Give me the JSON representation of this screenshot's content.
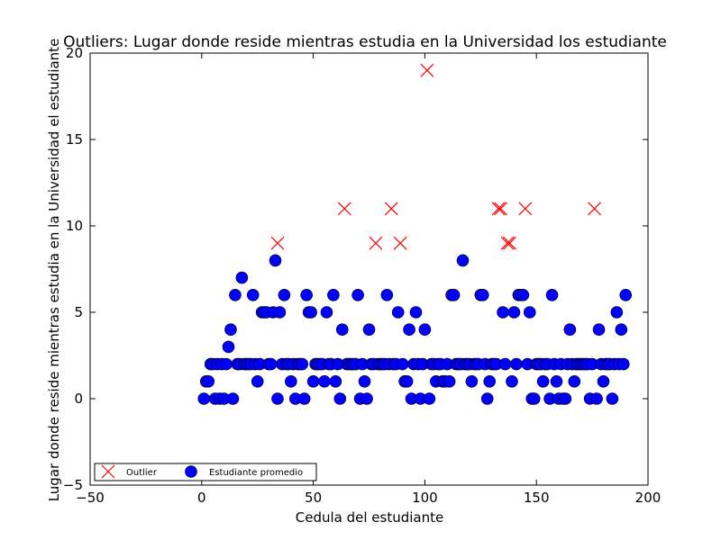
{
  "chart_data": {
    "type": "scatter",
    "title": "Outliers: Lugar donde reside mientras estudia en la Universidad los estudiante",
    "xlabel": "Cedula del estudiante",
    "ylabel": "Lugar donde reside mientras estudia en la Universidad el estudiante",
    "xlim": [
      -50,
      200
    ],
    "ylim": [
      -5,
      20
    ],
    "xticks": [
      -50,
      0,
      50,
      100,
      150,
      200
    ],
    "yticks": [
      -5,
      0,
      5,
      10,
      15,
      20
    ],
    "grid": false,
    "legend": {
      "placement": "lower-left",
      "entries": [
        "Outlier",
        "Estudiante promedio"
      ]
    },
    "series": [
      {
        "name": "Outlier",
        "marker": "x",
        "color": "#ff0000",
        "points": [
          [
            34,
            9
          ],
          [
            64,
            11
          ],
          [
            78,
            9
          ],
          [
            85,
            11
          ],
          [
            89,
            9
          ],
          [
            101,
            19
          ],
          [
            133,
            11
          ],
          [
            134,
            11
          ],
          [
            137,
            9
          ],
          [
            138,
            9
          ],
          [
            145,
            11
          ],
          [
            176,
            11
          ]
        ]
      },
      {
        "name": "Estudiante promedio",
        "marker": "circle",
        "color": "#0000ff",
        "points": [
          [
            1,
            0
          ],
          [
            2,
            1
          ],
          [
            3,
            1
          ],
          [
            4,
            2
          ],
          [
            5,
            2
          ],
          [
            6,
            0
          ],
          [
            7,
            2
          ],
          [
            8,
            0
          ],
          [
            9,
            2
          ],
          [
            10,
            0
          ],
          [
            11,
            2
          ],
          [
            12,
            3
          ],
          [
            13,
            4
          ],
          [
            14,
            0
          ],
          [
            15,
            6
          ],
          [
            16,
            2
          ],
          [
            17,
            2
          ],
          [
            18,
            7
          ],
          [
            19,
            2
          ],
          [
            20,
            2
          ],
          [
            21,
            2
          ],
          [
            22,
            2
          ],
          [
            23,
            6
          ],
          [
            24,
            2
          ],
          [
            25,
            1
          ],
          [
            26,
            2
          ],
          [
            27,
            5
          ],
          [
            28,
            5
          ],
          [
            29,
            5
          ],
          [
            30,
            2
          ],
          [
            31,
            2
          ],
          [
            32,
            5
          ],
          [
            33,
            8
          ],
          [
            34,
            0
          ],
          [
            35,
            5
          ],
          [
            36,
            2
          ],
          [
            37,
            6
          ],
          [
            38,
            2
          ],
          [
            39,
            2
          ],
          [
            40,
            1
          ],
          [
            41,
            2
          ],
          [
            42,
            0
          ],
          [
            43,
            2
          ],
          [
            44,
            2
          ],
          [
            45,
            2
          ],
          [
            46,
            0
          ],
          [
            47,
            6
          ],
          [
            48,
            5
          ],
          [
            49,
            5
          ],
          [
            50,
            1
          ],
          [
            51,
            2
          ],
          [
            52,
            2
          ],
          [
            53,
            2
          ],
          [
            54,
            2
          ],
          [
            55,
            1
          ],
          [
            56,
            5
          ],
          [
            57,
            2
          ],
          [
            58,
            2
          ],
          [
            59,
            6
          ],
          [
            60,
            1
          ],
          [
            61,
            2
          ],
          [
            62,
            0
          ],
          [
            63,
            4
          ],
          [
            65,
            2
          ],
          [
            66,
            2
          ],
          [
            67,
            2
          ],
          [
            68,
            2
          ],
          [
            69,
            2
          ],
          [
            70,
            6
          ],
          [
            71,
            0
          ],
          [
            72,
            2
          ],
          [
            73,
            1
          ],
          [
            74,
            0
          ],
          [
            75,
            4
          ],
          [
            76,
            2
          ],
          [
            77,
            2
          ],
          [
            79,
            2
          ],
          [
            80,
            2
          ],
          [
            81,
            2
          ],
          [
            82,
            2
          ],
          [
            83,
            6
          ],
          [
            84,
            2
          ],
          [
            86,
            2
          ],
          [
            87,
            2
          ],
          [
            88,
            5
          ],
          [
            90,
            2
          ],
          [
            91,
            1
          ],
          [
            92,
            1
          ],
          [
            93,
            4
          ],
          [
            94,
            0
          ],
          [
            95,
            2
          ],
          [
            96,
            5
          ],
          [
            97,
            2
          ],
          [
            98,
            0
          ],
          [
            99,
            2
          ],
          [
            100,
            4
          ],
          [
            102,
            0
          ],
          [
            103,
            2
          ],
          [
            104,
            2
          ],
          [
            105,
            1
          ],
          [
            106,
            2
          ],
          [
            107,
            2
          ],
          [
            108,
            1
          ],
          [
            109,
            1
          ],
          [
            110,
            2
          ],
          [
            111,
            1
          ],
          [
            112,
            6
          ],
          [
            113,
            6
          ],
          [
            114,
            2
          ],
          [
            115,
            2
          ],
          [
            116,
            2
          ],
          [
            117,
            8
          ],
          [
            118,
            2
          ],
          [
            119,
            2
          ],
          [
            120,
            2
          ],
          [
            121,
            1
          ],
          [
            122,
            2
          ],
          [
            123,
            2
          ],
          [
            124,
            2
          ],
          [
            125,
            6
          ],
          [
            126,
            6
          ],
          [
            127,
            2
          ],
          [
            128,
            0
          ],
          [
            129,
            1
          ],
          [
            130,
            2
          ],
          [
            131,
            2
          ],
          [
            132,
            2
          ],
          [
            135,
            5
          ],
          [
            136,
            2
          ],
          [
            139,
            1
          ],
          [
            140,
            5
          ],
          [
            141,
            2
          ],
          [
            142,
            6
          ],
          [
            143,
            6
          ],
          [
            144,
            6
          ],
          [
            146,
            2
          ],
          [
            147,
            5
          ],
          [
            148,
            0
          ],
          [
            149,
            0
          ],
          [
            150,
            2
          ],
          [
            151,
            2
          ],
          [
            152,
            2
          ],
          [
            153,
            1
          ],
          [
            154,
            2
          ],
          [
            155,
            2
          ],
          [
            156,
            0
          ],
          [
            157,
            6
          ],
          [
            158,
            2
          ],
          [
            159,
            1
          ],
          [
            160,
            0
          ],
          [
            161,
            2
          ],
          [
            162,
            0
          ],
          [
            163,
            0
          ],
          [
            164,
            2
          ],
          [
            165,
            4
          ],
          [
            166,
            2
          ],
          [
            167,
            1
          ],
          [
            168,
            2
          ],
          [
            169,
            2
          ],
          [
            170,
            2
          ],
          [
            171,
            2
          ],
          [
            172,
            2
          ],
          [
            173,
            2
          ],
          [
            174,
            0
          ],
          [
            175,
            2
          ],
          [
            177,
            0
          ],
          [
            178,
            4
          ],
          [
            179,
            2
          ],
          [
            180,
            1
          ],
          [
            181,
            2
          ],
          [
            182,
            2
          ],
          [
            183,
            2
          ],
          [
            184,
            0
          ],
          [
            185,
            2
          ],
          [
            186,
            5
          ],
          [
            187,
            2
          ],
          [
            188,
            4
          ],
          [
            189,
            2
          ],
          [
            190,
            6
          ]
        ]
      }
    ]
  }
}
